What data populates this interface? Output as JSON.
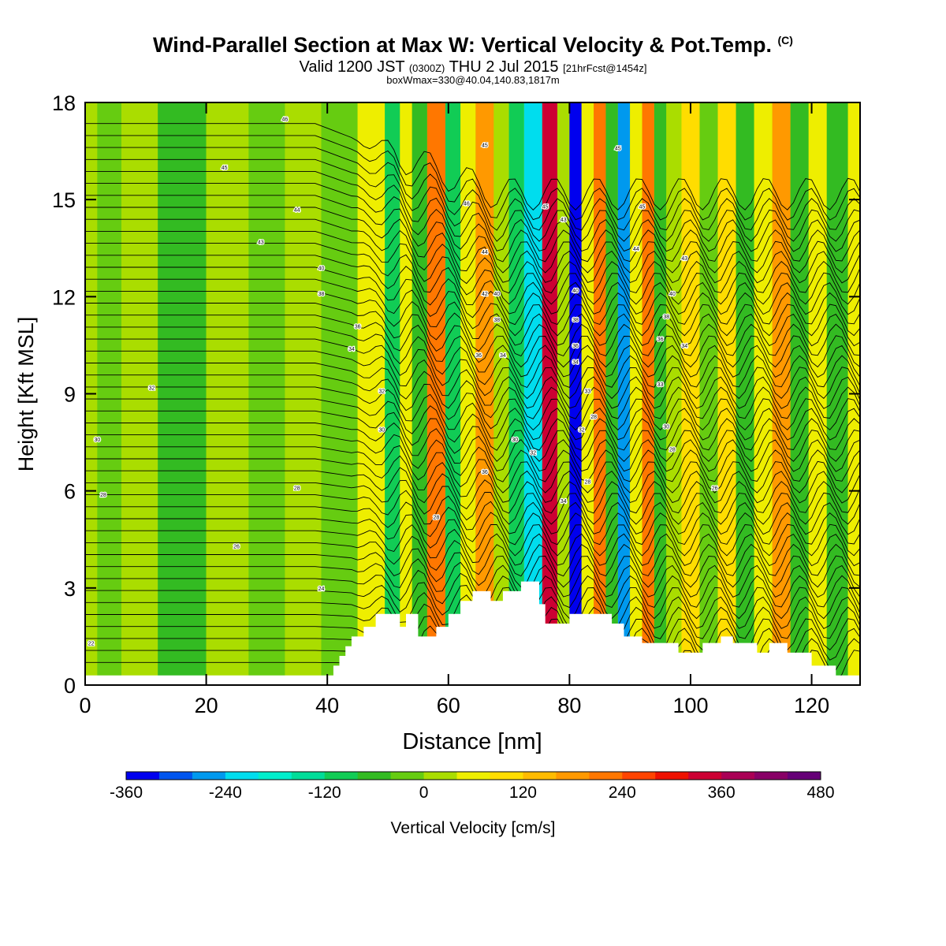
{
  "title": {
    "main": "Wind-Parallel Section at Max W: Vertical Velocity & Pot.Temp.",
    "copyright": "(C)",
    "valid_prefix": "Valid 1200 JST",
    "valid_utc": "(0300Z)",
    "valid_date": "THU 2 Jul 2015",
    "forecast": "[21hrFcst@1454z]",
    "subtitle": "boxWmax=330@40.04,140.83,1817m"
  },
  "chart_data": {
    "type": "heatmap",
    "xlabel": "Distance [nm]",
    "ylabel": "Height [Kft MSL]",
    "xlim": [
      0,
      128
    ],
    "ylim": [
      0,
      18
    ],
    "x_ticks": [
      "0",
      "20",
      "40",
      "60",
      "80",
      "100",
      "120"
    ],
    "y_ticks": [
      "0",
      "3",
      "6",
      "9",
      "12",
      "15",
      "18"
    ],
    "colorbar": {
      "label": "Vertical Velocity [cm/s]",
      "tick_labels": [
        "-360",
        "-240",
        "-120",
        "0",
        "120",
        "240",
        "360",
        "480"
      ],
      "levels": [
        -360,
        -320,
        -280,
        -240,
        -200,
        -160,
        -120,
        -80,
        -40,
        0,
        40,
        80,
        120,
        160,
        200,
        240,
        280,
        320,
        360,
        400,
        440,
        480
      ],
      "colors": [
        "#0000ee",
        "#0055ee",
        "#0099ee",
        "#00ddee",
        "#00eecc",
        "#00dd99",
        "#11cc55",
        "#33bb22",
        "#66cc11",
        "#aadd00",
        "#eeee00",
        "#ffdd00",
        "#ffbb00",
        "#ff9900",
        "#ff7700",
        "#ff4400",
        "#ee1100",
        "#cc0033",
        "#aa0055",
        "#880066",
        "#660077"
      ]
    },
    "vertical_velocity_bands": [
      {
        "x": 0,
        "value": 0
      },
      {
        "x": 4,
        "value": -40
      },
      {
        "x": 8,
        "value": 0
      },
      {
        "x": 16,
        "value": -50
      },
      {
        "x": 24,
        "value": 0
      },
      {
        "x": 30,
        "value": -30
      },
      {
        "x": 36,
        "value": 0
      },
      {
        "x": 42,
        "value": -30
      },
      {
        "x": 48,
        "value": 40
      },
      {
        "x": 51,
        "value": -90
      },
      {
        "x": 53,
        "value": 60
      },
      {
        "x": 55,
        "value": -60
      },
      {
        "x": 58,
        "value": 200
      },
      {
        "x": 61,
        "value": -110
      },
      {
        "x": 63,
        "value": 60
      },
      {
        "x": 66,
        "value": 180
      },
      {
        "x": 69,
        "value": 30
      },
      {
        "x": 71,
        "value": -120
      },
      {
        "x": 74,
        "value": -220
      },
      {
        "x": 77,
        "value": 330
      },
      {
        "x": 79,
        "value": 30
      },
      {
        "x": 81,
        "value": -340
      },
      {
        "x": 83,
        "value": 60
      },
      {
        "x": 85,
        "value": 220
      },
      {
        "x": 87,
        "value": -60
      },
      {
        "x": 89,
        "value": -260
      },
      {
        "x": 91,
        "value": 60
      },
      {
        "x": 93,
        "value": 200
      },
      {
        "x": 95,
        "value": -60
      },
      {
        "x": 97,
        "value": 30
      },
      {
        "x": 100,
        "value": 100
      },
      {
        "x": 103,
        "value": -40
      },
      {
        "x": 106,
        "value": 100
      },
      {
        "x": 109,
        "value": -60
      },
      {
        "x": 112,
        "value": 40
      },
      {
        "x": 115,
        "value": 180
      },
      {
        "x": 118,
        "value": -50
      },
      {
        "x": 121,
        "value": 60
      },
      {
        "x": 124,
        "value": -80
      },
      {
        "x": 128,
        "value": 40
      }
    ],
    "terrain": [
      [
        0,
        0.3
      ],
      [
        40,
        0.3
      ],
      [
        41,
        0.6
      ],
      [
        42,
        0.9
      ],
      [
        43,
        1.2
      ],
      [
        44,
        1.5
      ],
      [
        46,
        1.8
      ],
      [
        48,
        2.2
      ],
      [
        50,
        2.2
      ],
      [
        52,
        1.8
      ],
      [
        53,
        2.2
      ],
      [
        55,
        1.5
      ],
      [
        57,
        1.5
      ],
      [
        58,
        1.8
      ],
      [
        60,
        2.2
      ],
      [
        62,
        2.6
      ],
      [
        64,
        2.9
      ],
      [
        67,
        2.6
      ],
      [
        69,
        2.9
      ],
      [
        72,
        3.2
      ],
      [
        75,
        2.5
      ],
      [
        76,
        1.9
      ],
      [
        78,
        1.9
      ],
      [
        80,
        2.2
      ],
      [
        85,
        2.2
      ],
      [
        87,
        1.9
      ],
      [
        89,
        1.5
      ],
      [
        92,
        1.3
      ],
      [
        96,
        1.3
      ],
      [
        98,
        1.0
      ],
      [
        101,
        1.0
      ],
      [
        102,
        1.3
      ],
      [
        105,
        1.5
      ],
      [
        107,
        1.3
      ],
      [
        110,
        1.3
      ],
      [
        111,
        1.0
      ],
      [
        113,
        1.3
      ],
      [
        115,
        1.3
      ],
      [
        116,
        1.0
      ],
      [
        119,
        1.0
      ],
      [
        120,
        0.6
      ],
      [
        123,
        0.6
      ],
      [
        124,
        0.3
      ],
      [
        128,
        0.3
      ]
    ],
    "potential_temperature": {
      "units": "Kft / label",
      "contour_labels": [
        {
          "x": 33,
          "y": 17.5,
          "label": "46"
        },
        {
          "x": 23,
          "y": 16.0,
          "label": "45"
        },
        {
          "x": 35,
          "y": 14.7,
          "label": "44"
        },
        {
          "x": 29,
          "y": 13.7,
          "label": "43"
        },
        {
          "x": 39,
          "y": 12.9,
          "label": "40"
        },
        {
          "x": 39,
          "y": 12.1,
          "label": "38"
        },
        {
          "x": 45,
          "y": 11.1,
          "label": "36"
        },
        {
          "x": 44,
          "y": 10.4,
          "label": "34"
        },
        {
          "x": 49,
          "y": 9.1,
          "label": "32"
        },
        {
          "x": 49,
          "y": 7.9,
          "label": "30"
        },
        {
          "x": 35,
          "y": 6.1,
          "label": "28"
        },
        {
          "x": 25,
          "y": 4.3,
          "label": "26"
        },
        {
          "x": 39,
          "y": 3.0,
          "label": "24"
        },
        {
          "x": 1,
          "y": 1.3,
          "label": "22"
        },
        {
          "x": 11,
          "y": 9.2,
          "label": "32"
        },
        {
          "x": 2,
          "y": 7.6,
          "label": "30"
        },
        {
          "x": 3,
          "y": 5.9,
          "label": "28"
        },
        {
          "x": 66,
          "y": 16.7,
          "label": "45"
        },
        {
          "x": 63,
          "y": 14.9,
          "label": "46"
        },
        {
          "x": 66,
          "y": 13.4,
          "label": "44"
        },
        {
          "x": 66,
          "y": 12.1,
          "label": "42"
        },
        {
          "x": 68,
          "y": 12.1,
          "label": "40"
        },
        {
          "x": 68,
          "y": 11.3,
          "label": "38"
        },
        {
          "x": 65,
          "y": 10.2,
          "label": "36"
        },
        {
          "x": 69,
          "y": 10.2,
          "label": "34"
        },
        {
          "x": 71,
          "y": 7.6,
          "label": "30"
        },
        {
          "x": 74,
          "y": 7.2,
          "label": "32"
        },
        {
          "x": 66,
          "y": 6.6,
          "label": "36"
        },
        {
          "x": 58,
          "y": 5.2,
          "label": "28"
        },
        {
          "x": 76,
          "y": 14.8,
          "label": "45"
        },
        {
          "x": 79,
          "y": 14.4,
          "label": "43"
        },
        {
          "x": 81,
          "y": 12.2,
          "label": "40"
        },
        {
          "x": 81,
          "y": 11.3,
          "label": "38"
        },
        {
          "x": 81,
          "y": 10.5,
          "label": "36"
        },
        {
          "x": 81,
          "y": 10.0,
          "label": "34"
        },
        {
          "x": 83,
          "y": 9.1,
          "label": "33"
        },
        {
          "x": 84,
          "y": 8.3,
          "label": "28"
        },
        {
          "x": 82,
          "y": 7.9,
          "label": "32"
        },
        {
          "x": 83,
          "y": 6.3,
          "label": "28"
        },
        {
          "x": 79,
          "y": 5.7,
          "label": "34"
        },
        {
          "x": 88,
          "y": 16.6,
          "label": "45"
        },
        {
          "x": 92,
          "y": 14.8,
          "label": "45"
        },
        {
          "x": 91,
          "y": 13.5,
          "label": "44"
        },
        {
          "x": 99,
          "y": 13.2,
          "label": "43"
        },
        {
          "x": 97,
          "y": 12.1,
          "label": "40"
        },
        {
          "x": 96,
          "y": 11.4,
          "label": "38"
        },
        {
          "x": 95,
          "y": 10.7,
          "label": "36"
        },
        {
          "x": 99,
          "y": 10.5,
          "label": "34"
        },
        {
          "x": 95,
          "y": 9.3,
          "label": "33"
        },
        {
          "x": 96,
          "y": 8.0,
          "label": "30"
        },
        {
          "x": 97,
          "y": 7.3,
          "label": "28"
        },
        {
          "x": 104,
          "y": 6.1,
          "label": "26"
        }
      ]
    }
  }
}
